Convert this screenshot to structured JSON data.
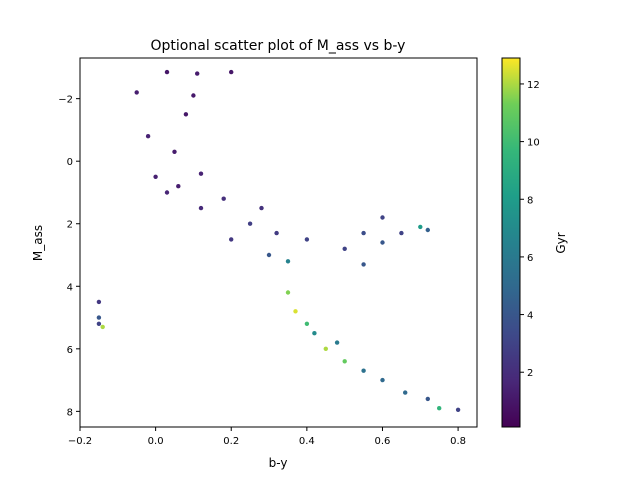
{
  "chart_data": {
    "type": "scatter",
    "title": "Optional scatter plot of M_ass vs b-y",
    "xlabel": "b-y",
    "ylabel": "M_ass",
    "xlim": [
      -0.2,
      0.85
    ],
    "ylim": [
      8.5,
      -3.3
    ],
    "y_inverted": true,
    "xticks": [
      -0.2,
      0.0,
      0.2,
      0.4,
      0.6,
      0.8
    ],
    "xtick_labels": [
      "−0.2",
      "0.0",
      "0.2",
      "0.4",
      "0.6",
      "0.8"
    ],
    "yticks": [
      -2,
      0,
      2,
      4,
      6,
      8
    ],
    "ytick_labels": [
      "−2",
      "0",
      "2",
      "4",
      "6",
      "8"
    ],
    "grid": false,
    "colorbar": {
      "label": "Gyr",
      "range": [
        0.1,
        12.9
      ],
      "ticks": [
        2,
        4,
        6,
        8,
        10,
        12
      ],
      "tick_labels": [
        "2",
        "4",
        "6",
        "8",
        "10",
        "12"
      ],
      "colormap": "viridis"
    },
    "points": [
      {
        "x": 0.03,
        "y": -2.85,
        "c": 1.0
      },
      {
        "x": 0.11,
        "y": -2.8,
        "c": 1.2
      },
      {
        "x": 0.2,
        "y": -2.85,
        "c": 1.0
      },
      {
        "x": -0.05,
        "y": -2.2,
        "c": 1.3
      },
      {
        "x": 0.1,
        "y": -2.1,
        "c": 1.1
      },
      {
        "x": 0.08,
        "y": -1.5,
        "c": 1.0
      },
      {
        "x": -0.02,
        "y": -0.8,
        "c": 1.5
      },
      {
        "x": 0.05,
        "y": -0.3,
        "c": 1.2
      },
      {
        "x": 0.0,
        "y": 0.5,
        "c": 1.4
      },
      {
        "x": 0.03,
        "y": 1.0,
        "c": 1.6
      },
      {
        "x": 0.06,
        "y": 0.8,
        "c": 1.3
      },
      {
        "x": 0.12,
        "y": 0.4,
        "c": 1.5
      },
      {
        "x": 0.12,
        "y": 1.5,
        "c": 1.8
      },
      {
        "x": 0.18,
        "y": 1.2,
        "c": 2.1
      },
      {
        "x": 0.2,
        "y": 2.5,
        "c": 2.5
      },
      {
        "x": 0.25,
        "y": 2.0,
        "c": 2.8
      },
      {
        "x": 0.3,
        "y": 3.0,
        "c": 4.0
      },
      {
        "x": 0.32,
        "y": 2.3,
        "c": 2.6
      },
      {
        "x": 0.28,
        "y": 1.5,
        "c": 2.2
      },
      {
        "x": 0.35,
        "y": 3.2,
        "c": 6.5
      },
      {
        "x": 0.35,
        "y": 4.2,
        "c": 11.5
      },
      {
        "x": 0.37,
        "y": 4.8,
        "c": 12.5
      },
      {
        "x": 0.4,
        "y": 5.2,
        "c": 10.0
      },
      {
        "x": 0.42,
        "y": 5.5,
        "c": 7.0
      },
      {
        "x": 0.45,
        "y": 6.0,
        "c": 12.0
      },
      {
        "x": 0.5,
        "y": 6.4,
        "c": 11.0
      },
      {
        "x": 0.48,
        "y": 5.8,
        "c": 6.0
      },
      {
        "x": 0.55,
        "y": 6.7,
        "c": 5.5
      },
      {
        "x": 0.6,
        "y": 7.0,
        "c": 5.0
      },
      {
        "x": 0.66,
        "y": 7.4,
        "c": 5.0
      },
      {
        "x": 0.72,
        "y": 7.6,
        "c": 4.0
      },
      {
        "x": 0.75,
        "y": 7.9,
        "c": 9.5
      },
      {
        "x": 0.8,
        "y": 7.95,
        "c": 3.0
      },
      {
        "x": 0.4,
        "y": 2.5,
        "c": 3.0
      },
      {
        "x": 0.5,
        "y": 2.8,
        "c": 3.0
      },
      {
        "x": 0.55,
        "y": 2.3,
        "c": 3.5
      },
      {
        "x": 0.6,
        "y": 2.6,
        "c": 4.0
      },
      {
        "x": 0.65,
        "y": 2.3,
        "c": 3.0
      },
      {
        "x": 0.7,
        "y": 2.1,
        "c": 8.0
      },
      {
        "x": 0.72,
        "y": 2.2,
        "c": 4.5
      },
      {
        "x": 0.55,
        "y": 3.3,
        "c": 4.0
      },
      {
        "x": 0.6,
        "y": 1.8,
        "c": 3.0
      },
      {
        "x": -0.15,
        "y": 4.5,
        "c": 2.5
      },
      {
        "x": -0.15,
        "y": 5.0,
        "c": 4.0
      },
      {
        "x": -0.14,
        "y": 5.3,
        "c": 12.0
      },
      {
        "x": -0.15,
        "y": 5.2,
        "c": 3.0
      }
    ]
  }
}
